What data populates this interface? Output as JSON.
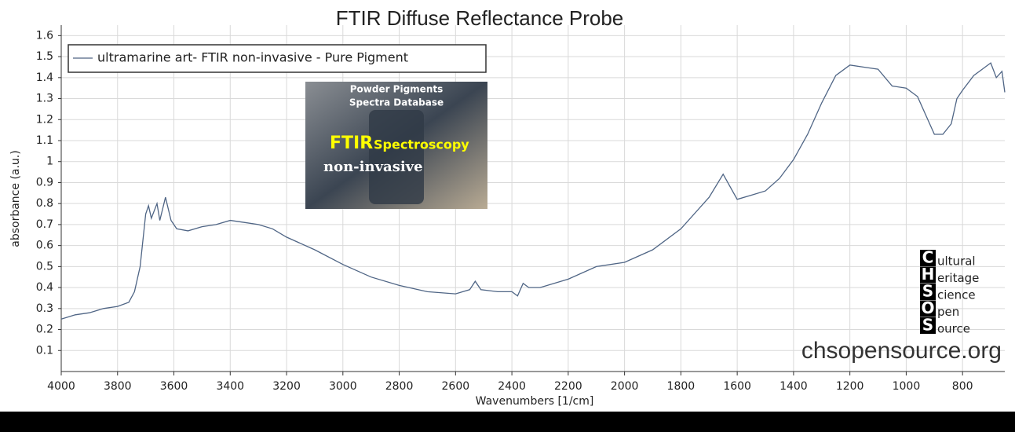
{
  "chart_data": {
    "type": "line",
    "title": "FTIR Diffuse Reflectance Probe",
    "xlabel": "Wavenumbers [1/cm]",
    "ylabel": "absorbance (a.u.)",
    "x": [
      4000,
      3950,
      3900,
      3850,
      3800,
      3760,
      3740,
      3720,
      3700,
      3690,
      3680,
      3660,
      3650,
      3630,
      3610,
      3590,
      3550,
      3500,
      3450,
      3400,
      3350,
      3300,
      3250,
      3200,
      3100,
      3000,
      2900,
      2800,
      2700,
      2600,
      2550,
      2530,
      2510,
      2450,
      2400,
      2380,
      2360,
      2340,
      2300,
      2200,
      2100,
      2000,
      1900,
      1800,
      1700,
      1650,
      1600,
      1550,
      1500,
      1450,
      1400,
      1350,
      1300,
      1250,
      1200,
      1150,
      1100,
      1050,
      1000,
      960,
      930,
      900,
      870,
      840,
      820,
      800,
      760,
      730,
      700,
      680,
      660,
      650
    ],
    "series": [
      {
        "name": "ultramarine art- FTIR non-invasive - Pure Pigment",
        "color": "#4f6585",
        "values": [
          0.25,
          0.27,
          0.28,
          0.3,
          0.31,
          0.33,
          0.38,
          0.5,
          0.75,
          0.79,
          0.73,
          0.8,
          0.72,
          0.83,
          0.72,
          0.68,
          0.67,
          0.69,
          0.7,
          0.72,
          0.71,
          0.7,
          0.68,
          0.64,
          0.58,
          0.51,
          0.45,
          0.41,
          0.38,
          0.37,
          0.39,
          0.43,
          0.39,
          0.38,
          0.38,
          0.36,
          0.42,
          0.4,
          0.4,
          0.44,
          0.5,
          0.52,
          0.58,
          0.68,
          0.83,
          0.94,
          0.82,
          0.84,
          0.86,
          0.92,
          1.01,
          1.13,
          1.28,
          1.41,
          1.46,
          1.45,
          1.44,
          1.36,
          1.35,
          1.31,
          1.22,
          1.13,
          1.13,
          1.18,
          1.3,
          1.34,
          1.41,
          1.44,
          1.47,
          1.4,
          1.43,
          1.33
        ]
      }
    ],
    "xlim": [
      4000,
      650
    ],
    "ylim": [
      0,
      1.65
    ],
    "xticks": [
      4000,
      3800,
      3600,
      3400,
      3200,
      3000,
      2800,
      2600,
      2400,
      2200,
      2000,
      1800,
      1600,
      1400,
      1200,
      1000,
      800
    ],
    "yticks": [
      0.1,
      0.2,
      0.3,
      0.4,
      0.5,
      0.6,
      0.7,
      0.8,
      0.9,
      1,
      1.1,
      1.2,
      1.3,
      1.4,
      1.5,
      1.6
    ],
    "grid": true,
    "legend": "upper left",
    "inset": {
      "lines": [
        "Powder Pigments",
        "Spectra   Database",
        "FTIR",
        "Spectroscopy",
        "non-invasive"
      ]
    },
    "watermark": {
      "letters": [
        "C",
        "H",
        "S",
        "O",
        "S"
      ],
      "words": [
        "ultural",
        "eritage",
        "cience",
        "pen",
        "ource"
      ],
      "url": "chsopensource.org"
    }
  }
}
